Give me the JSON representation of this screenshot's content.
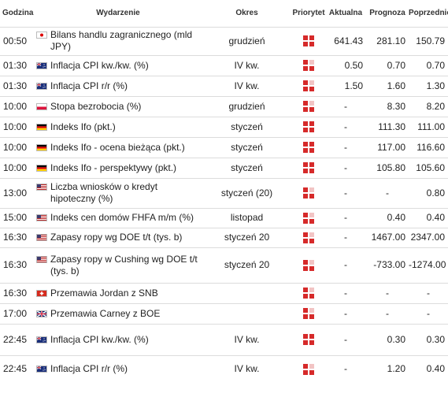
{
  "headers": {
    "time": "Godzina",
    "event": "Wydarzenie",
    "period": "Okres",
    "priority": "Priorytet",
    "actual": "Aktualna",
    "forecast": "Prognoza",
    "previous": "Poprzednio"
  },
  "colors": {
    "priority_red": "#d62a2a",
    "priority_light": "#f2c4c4",
    "row_border": "#dcdcdc"
  },
  "rows": [
    {
      "time": "00:50",
      "flag": "japan-flag-icon",
      "event": "Bilans handlu zagranicznego (mld JPY)",
      "period": "grudzień",
      "priority": "high",
      "actual": "641.43",
      "forecast": "281.10",
      "previous": "150.79"
    },
    {
      "time": "01:30",
      "flag": "australia-flag-icon",
      "event": "Inflacja CPI kw./kw. (%)",
      "period": "IV kw.",
      "priority": "medium",
      "actual": "0.50",
      "forecast": "0.70",
      "previous": "0.70"
    },
    {
      "time": "01:30",
      "flag": "australia-flag-icon",
      "event": "Inflacja CPI r/r (%)",
      "period": "IV kw.",
      "priority": "medium",
      "actual": "1.50",
      "forecast": "1.60",
      "previous": "1.30"
    },
    {
      "time": "10:00",
      "flag": "poland-flag-icon",
      "event": "Stopa bezrobocia (%)",
      "period": "grudzień",
      "priority": "medium",
      "actual": "-",
      "forecast": "8.30",
      "previous": "8.20"
    },
    {
      "time": "10:00",
      "flag": "germany-flag-icon",
      "event": "Indeks Ifo (pkt.)",
      "period": "styczeń",
      "priority": "high",
      "actual": "-",
      "forecast": "111.30",
      "previous": "111.00"
    },
    {
      "time": "10:00",
      "flag": "germany-flag-icon",
      "event": "Indeks Ifo - ocena bieżąca (pkt.)",
      "period": "styczeń",
      "priority": "high",
      "actual": "-",
      "forecast": "117.00",
      "previous": "116.60"
    },
    {
      "time": "10:00",
      "flag": "germany-flag-icon",
      "event": "Indeks Ifo - perspektywy (pkt.)",
      "period": "styczeń",
      "priority": "high",
      "actual": "-",
      "forecast": "105.80",
      "previous": "105.60"
    },
    {
      "time": "13:00",
      "flag": "usa-flag-icon",
      "event": "Liczba wniosków o kredyt hipoteczny (%)",
      "period": "styczeń (20)",
      "priority": "medium",
      "actual": "-",
      "forecast": "-",
      "previous": "0.80"
    },
    {
      "time": "15:00",
      "flag": "usa-flag-icon",
      "event": "Indeks cen domów FHFA m/m (%)",
      "period": "listopad",
      "priority": "medium",
      "actual": "-",
      "forecast": "0.40",
      "previous": "0.40"
    },
    {
      "time": "16:30",
      "flag": "usa-flag-icon",
      "event": "Zapasy ropy wg DOE t/t (tys. b)",
      "period": "styczeń 20",
      "priority": "medium",
      "actual": "-",
      "forecast": "1467.00",
      "previous": "2347.00"
    },
    {
      "time": "16:30",
      "flag": "usa-flag-icon",
      "event": "Zapasy ropy w Cushing wg DOE t/t (tys. b)",
      "period": "styczeń 20",
      "priority": "medium",
      "actual": "-",
      "forecast": "-733.00",
      "previous": "-1274.00"
    },
    {
      "time": "16:30",
      "flag": "switzerland-flag-icon",
      "event": "Przemawia Jordan z SNB",
      "period": "",
      "priority": "medium",
      "actual": "-",
      "forecast": "-",
      "previous": "-"
    },
    {
      "time": "17:00",
      "flag": "uk-flag-icon",
      "event": "Przemawia Carney z BOE",
      "period": "",
      "priority": "medium",
      "actual": "-",
      "forecast": "-",
      "previous": "-"
    },
    {
      "time": "22:45",
      "flag": "new-zealand-flag-icon",
      "event": "Inflacja CPI kw./kw. (%)",
      "period": "IV kw.",
      "priority": "high",
      "actual": "-",
      "forecast": "0.30",
      "previous": "0.30"
    },
    {
      "time": "22:45",
      "flag": "new-zealand-flag-icon",
      "event": "Inflacja CPI r/r (%)",
      "period": "IV kw.",
      "priority": "medium",
      "actual": "-",
      "forecast": "1.20",
      "previous": "0.40"
    }
  ]
}
